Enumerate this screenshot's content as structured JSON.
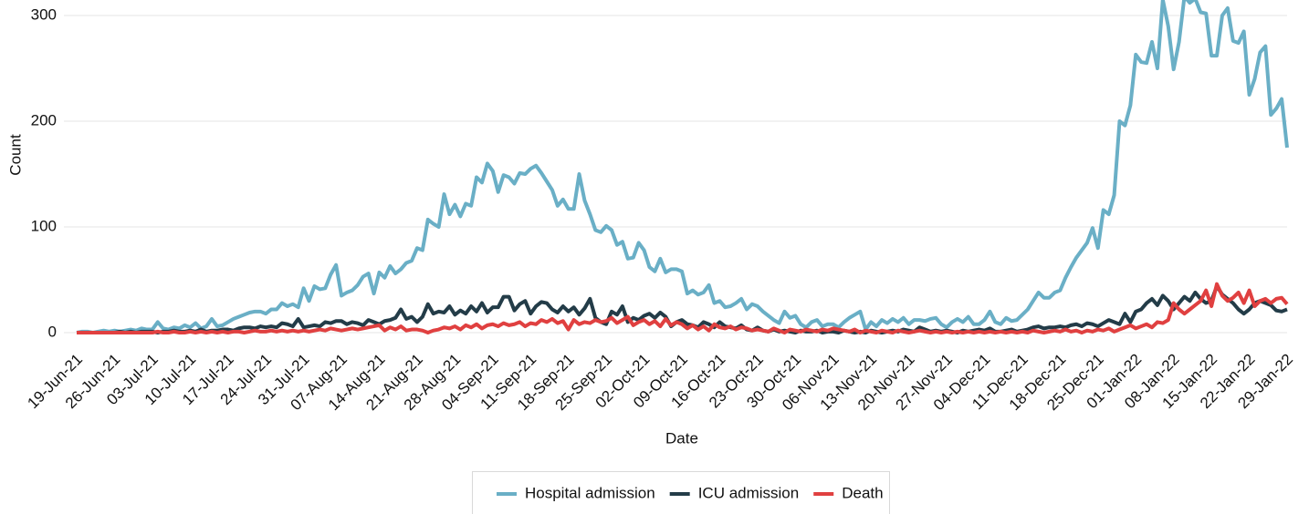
{
  "chart_data": {
    "type": "line",
    "x_label": "Date",
    "y_label": "Count",
    "categories": [
      "19-Jun-21",
      null,
      null,
      null,
      null,
      null,
      null,
      "26-Jun-21",
      null,
      null,
      null,
      null,
      null,
      null,
      "03-Jul-21",
      null,
      null,
      null,
      null,
      null,
      null,
      "10-Jul-21",
      null,
      null,
      null,
      null,
      null,
      null,
      "17-Jul-21",
      null,
      null,
      null,
      null,
      null,
      null,
      "24-Jul-21",
      null,
      null,
      null,
      null,
      null,
      null,
      "31-Jul-21",
      null,
      null,
      null,
      null,
      null,
      null,
      "07-Aug-21",
      null,
      null,
      null,
      null,
      null,
      null,
      "14-Aug-21",
      null,
      null,
      null,
      null,
      null,
      null,
      "21-Aug-21",
      null,
      null,
      null,
      null,
      null,
      null,
      "28-Aug-21",
      null,
      null,
      null,
      null,
      null,
      null,
      "04-Sep-21",
      null,
      null,
      null,
      null,
      null,
      null,
      "11-Sep-21",
      null,
      null,
      null,
      null,
      null,
      null,
      "18-Sep-21",
      null,
      null,
      null,
      null,
      null,
      null,
      "25-Sep-21",
      null,
      null,
      null,
      null,
      null,
      null,
      "02-Oct-21",
      null,
      null,
      null,
      null,
      null,
      null,
      "09-Oct-21",
      null,
      null,
      null,
      null,
      null,
      null,
      "16-Oct-21",
      null,
      null,
      null,
      null,
      null,
      null,
      "23-Oct-21",
      null,
      null,
      null,
      null,
      null,
      null,
      "30-Oct-21",
      null,
      null,
      null,
      null,
      null,
      null,
      "06-Nov-21",
      null,
      null,
      null,
      null,
      null,
      null,
      "13-Nov-21",
      null,
      null,
      null,
      null,
      null,
      null,
      "20-Nov-21",
      null,
      null,
      null,
      null,
      null,
      null,
      "27-Nov-21",
      null,
      null,
      null,
      null,
      null,
      null,
      "04-Dec-21",
      null,
      null,
      null,
      null,
      null,
      null,
      "11-Dec-21",
      null,
      null,
      null,
      null,
      null,
      null,
      "18-Dec-21",
      null,
      null,
      null,
      null,
      null,
      null,
      "25-Dec-21",
      null,
      null,
      null,
      null,
      null,
      null,
      "01-Jan-22",
      null,
      null,
      null,
      null,
      null,
      null,
      "08-Jan-22",
      null,
      null,
      null,
      null,
      null,
      null,
      "15-Jan-22",
      null,
      null,
      null,
      null,
      null,
      null,
      "22-Jan-22",
      null,
      null,
      null,
      null,
      null,
      null,
      "29-Jan-22"
    ],
    "series": [
      {
        "name": "Hospital admission",
        "color": "#6aafc6",
        "values": [
          0,
          1,
          1,
          0,
          1,
          2,
          1,
          2,
          1,
          2,
          3,
          2,
          4,
          3,
          3,
          10,
          4,
          3,
          5,
          4,
          7,
          5,
          9,
          4,
          6,
          13,
          6,
          7,
          10,
          13,
          15,
          17,
          19,
          20,
          20,
          18,
          22,
          22,
          28,
          25,
          27,
          24,
          42,
          30,
          44,
          41,
          42,
          55,
          64,
          35,
          38,
          40,
          45,
          53,
          56,
          37,
          57,
          52,
          63,
          56,
          60,
          66,
          68,
          80,
          78,
          107,
          103,
          100,
          131,
          112,
          121,
          110,
          122,
          120,
          147,
          142,
          160,
          153,
          133,
          149,
          147,
          141,
          151,
          150,
          155,
          158,
          151,
          143,
          135,
          120,
          126,
          117,
          117,
          150,
          125,
          112,
          97,
          95,
          101,
          97,
          83,
          86,
          70,
          71,
          85,
          78,
          62,
          58,
          70,
          57,
          60,
          60,
          58,
          37,
          40,
          36,
          38,
          45,
          28,
          30,
          24,
          25,
          28,
          32,
          22,
          27,
          25,
          20,
          16,
          12,
          9,
          20,
          14,
          16,
          8,
          5,
          10,
          12,
          6,
          8,
          8,
          5,
          10,
          14,
          17,
          20,
          3,
          10,
          6,
          12,
          9,
          13,
          10,
          14,
          8,
          12,
          12,
          11,
          13,
          14,
          8,
          5,
          10,
          13,
          10,
          15,
          8,
          8,
          12,
          20,
          10,
          8,
          14,
          11,
          12,
          17,
          22,
          30,
          38,
          33,
          33,
          38,
          40,
          52,
          62,
          71,
          78,
          85,
          99,
          80,
          116,
          112,
          130,
          200,
          196,
          215,
          263,
          256,
          255,
          275,
          250,
          315,
          290,
          249,
          275,
          318,
          312,
          316,
          303,
          302,
          262,
          262,
          300,
          307,
          276,
          274,
          285,
          225,
          240,
          265,
          271,
          206,
          212,
          221,
          175
        ]
      },
      {
        "name": "ICU admission",
        "color": "#233c48",
        "values": [
          0,
          0,
          0,
          0,
          0,
          0,
          0,
          0,
          1,
          0,
          1,
          0,
          1,
          1,
          1,
          0,
          1,
          1,
          2,
          1,
          1,
          2,
          1,
          3,
          1,
          2,
          2,
          3,
          3,
          2,
          4,
          5,
          5,
          4,
          6,
          5,
          6,
          5,
          9,
          8,
          6,
          13,
          5,
          6,
          7,
          6,
          10,
          9,
          11,
          11,
          8,
          10,
          9,
          7,
          12,
          10,
          8,
          11,
          12,
          14,
          22,
          13,
          15,
          10,
          15,
          27,
          18,
          20,
          19,
          25,
          17,
          21,
          18,
          25,
          20,
          28,
          19,
          24,
          24,
          34,
          34,
          21,
          27,
          30,
          18,
          25,
          29,
          28,
          22,
          19,
          25,
          20,
          24,
          17,
          23,
          32,
          14,
          10,
          8,
          20,
          17,
          25,
          10,
          14,
          12,
          16,
          18,
          14,
          19,
          15,
          6,
          10,
          12,
          8,
          7,
          5,
          10,
          8,
          5,
          10,
          6,
          5,
          4,
          7,
          3,
          2,
          5,
          2,
          1,
          3,
          1,
          2,
          1,
          0,
          2,
          1,
          1,
          2,
          0,
          1,
          1,
          0,
          2,
          1,
          0,
          1,
          0,
          2,
          1,
          0,
          1,
          2,
          1,
          3,
          2,
          1,
          5,
          3,
          1,
          2,
          1,
          2,
          1,
          0,
          2,
          1,
          2,
          3,
          2,
          4,
          1,
          1,
          2,
          3,
          1,
          2,
          3,
          5,
          6,
          4,
          5,
          5,
          6,
          5,
          7,
          8,
          6,
          9,
          8,
          6,
          9,
          12,
          10,
          8,
          18,
          10,
          20,
          22,
          28,
          32,
          26,
          35,
          30,
          22,
          28,
          34,
          30,
          38,
          32,
          28,
          30,
          44,
          36,
          32,
          28,
          22,
          18,
          22,
          28,
          30,
          28,
          26,
          21,
          20,
          22
        ]
      },
      {
        "name": "Death",
        "color": "#e04040",
        "values": [
          0,
          0,
          0,
          0,
          0,
          0,
          0,
          0,
          0,
          0,
          0,
          0,
          0,
          0,
          0,
          1,
          0,
          0,
          1,
          0,
          0,
          1,
          0,
          1,
          0,
          1,
          0,
          1,
          0,
          1,
          1,
          0,
          1,
          2,
          1,
          1,
          2,
          1,
          2,
          1,
          2,
          1,
          2,
          1,
          2,
          3,
          2,
          4,
          3,
          2,
          3,
          4,
          3,
          4,
          5,
          6,
          7,
          2,
          5,
          3,
          6,
          2,
          3,
          3,
          2,
          0,
          2,
          3,
          5,
          4,
          6,
          3,
          7,
          5,
          8,
          4,
          7,
          8,
          6,
          9,
          7,
          8,
          10,
          6,
          9,
          8,
          12,
          10,
          13,
          9,
          11,
          3,
          12,
          8,
          10,
          9,
          12,
          10,
          11,
          14,
          9,
          12,
          15,
          7,
          10,
          12,
          8,
          11,
          6,
          13,
          7,
          10,
          8,
          4,
          7,
          3,
          6,
          2,
          8,
          5,
          4,
          6,
          3,
          5,
          4,
          2,
          3,
          2,
          1,
          4,
          2,
          0,
          3,
          2,
          1,
          3,
          2,
          1,
          3,
          2,
          4,
          3,
          2,
          1,
          3,
          0,
          2,
          1,
          0,
          2,
          1,
          0,
          2,
          1,
          0,
          1,
          2,
          1,
          0,
          1,
          0,
          1,
          0,
          1,
          0,
          1,
          0,
          1,
          0,
          1,
          0,
          1,
          0,
          1,
          0,
          1,
          0,
          2,
          1,
          0,
          1,
          2,
          1,
          3,
          1,
          2,
          0,
          2,
          1,
          3,
          2,
          4,
          1,
          3,
          5,
          7,
          4,
          6,
          8,
          5,
          10,
          9,
          12,
          28,
          22,
          18,
          22,
          26,
          30,
          40,
          25,
          46,
          35,
          30,
          33,
          38,
          28,
          40,
          25,
          30,
          32,
          28,
          32,
          33,
          27
        ]
      }
    ],
    "ylim": [
      -8,
      315
    ],
    "yticks": [
      0,
      100,
      200,
      300
    ],
    "grid": true,
    "legend": "bottom"
  }
}
